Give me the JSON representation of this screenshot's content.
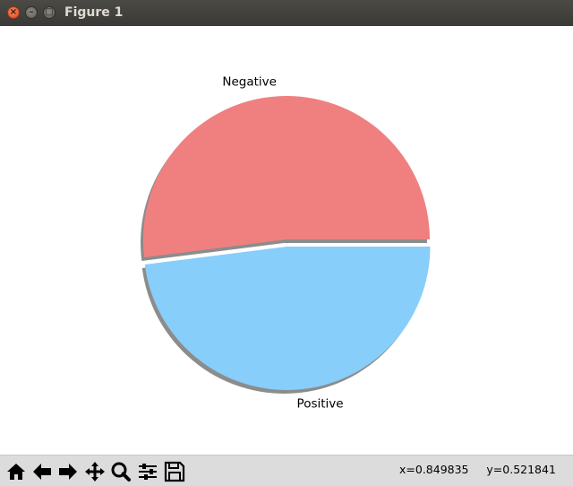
{
  "window": {
    "title": "Figure 1"
  },
  "chart_data": {
    "type": "pie",
    "labels": [
      "Negative",
      "Positive"
    ],
    "values": [
      52,
      48
    ],
    "colors": [
      "#f08080",
      "#87cefa"
    ],
    "explode": [
      0,
      0.05
    ],
    "shadow": true,
    "title": "",
    "legend": "none"
  },
  "toolbar": {
    "buttons": [
      "home-icon",
      "back-icon",
      "forward-icon",
      "pan-icon",
      "zoom-icon",
      "configure-subplots-icon",
      "save-icon"
    ]
  },
  "status": {
    "x_readout": "x=0.849835",
    "y_readout": "y=0.521841"
  }
}
